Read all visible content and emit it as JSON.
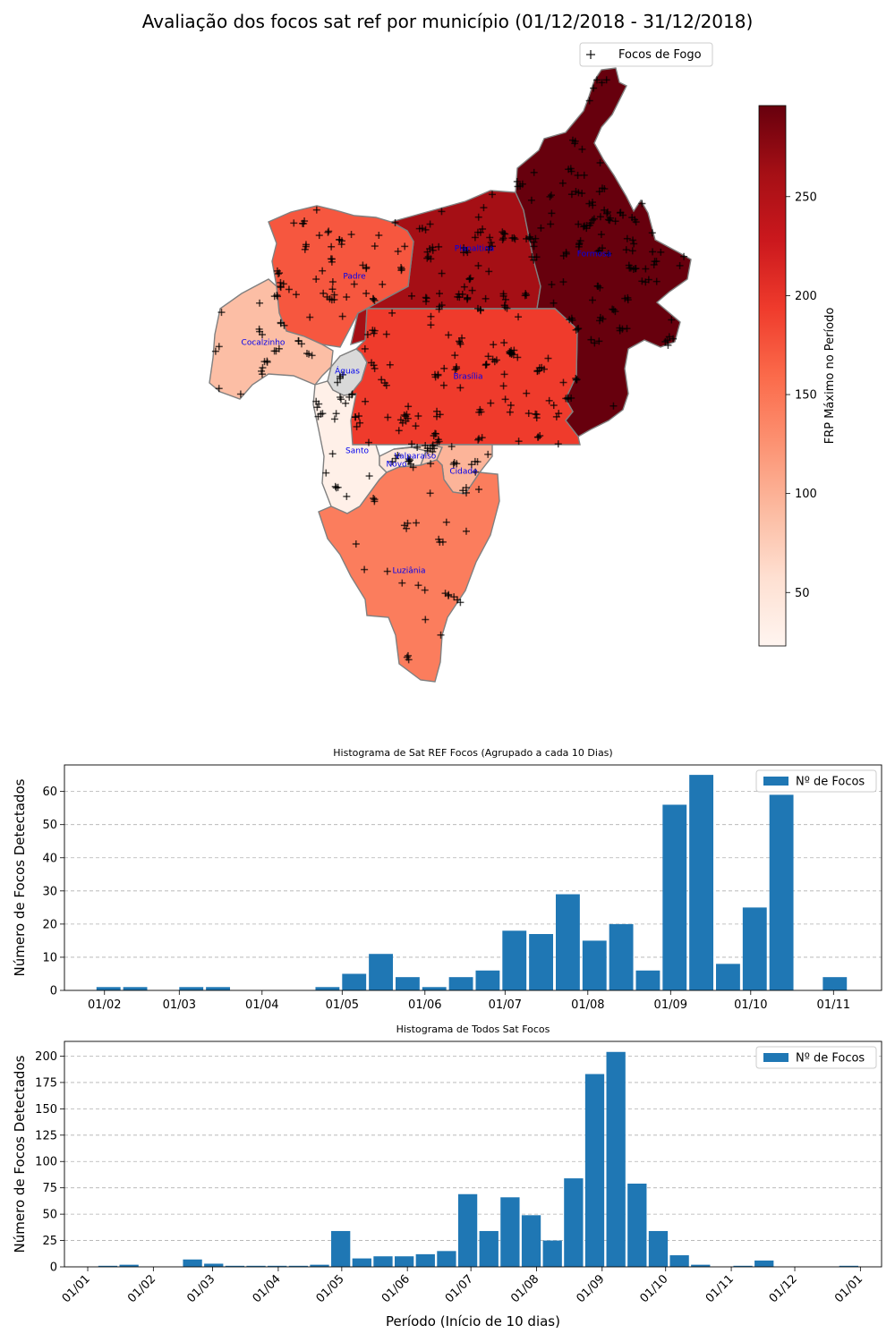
{
  "title": "Avaliação dos focos sat ref por município (01/12/2018 - 31/12/2018)",
  "map": {
    "legend_label": "Focos de Fogo",
    "colorbar_label": "FRP Máximo no Período",
    "colorbar_ticks": [
      "50",
      "100",
      "150",
      "200",
      "250"
    ],
    "colorbar_range": [
      23,
      296
    ],
    "colormap": "Reds",
    "municipalities": [
      {
        "name": "Planaltina",
        "frp": 258,
        "color": "#a50f15"
      },
      {
        "name": "Formosa",
        "frp": 292,
        "color": "#67000d"
      },
      {
        "name": "Padre",
        "frp": 168,
        "color": "#f6573f"
      },
      {
        "name": "Cocalzinho",
        "frp": 80,
        "color": "#fcbea5"
      },
      {
        "name": "Águas",
        "frp": null,
        "color": "#d9d9d9"
      },
      {
        "name": "Brasília",
        "frp": 192,
        "color": "#ef3b2c"
      },
      {
        "name": "Santo",
        "frp": 33,
        "color": "#fff0e8"
      },
      {
        "name": "Novo",
        "frp": 40,
        "color": "#fee5d9"
      },
      {
        "name": "Valparaíso",
        "frp": 60,
        "color": "#fdd0bb"
      },
      {
        "name": "Cidade",
        "frp": 85,
        "color": "#fcb499"
      },
      {
        "name": "Luziânia",
        "frp": 140,
        "color": "#fb7d5d"
      }
    ]
  },
  "chart_data": [
    {
      "type": "bar",
      "title": "Histograma de Sat REF Focos (Agrupado a cada 10 Dias)",
      "xlabel": "",
      "ylabel": "Número de Focos Detectados",
      "legend": "Nº de Focos",
      "legend_position": "top-right",
      "grid": "y-dashed",
      "color": "#1f77b4",
      "ylim": [
        0,
        68
      ],
      "yticks": [
        0,
        10,
        20,
        30,
        40,
        50,
        60
      ],
      "xticks": [
        "01/02",
        "01/03",
        "01/04",
        "01/05",
        "01/06",
        "01/07",
        "01/08",
        "01/09",
        "01/10",
        "01/11"
      ],
      "bar_width_days": 9,
      "x": [
        "2018-01-29",
        "2018-02-08",
        "2018-03-01",
        "2018-03-11",
        "2018-04-21",
        "2018-05-01",
        "2018-05-11",
        "2018-05-21",
        "2018-05-31",
        "2018-06-10",
        "2018-06-20",
        "2018-06-30",
        "2018-07-10",
        "2018-07-20",
        "2018-07-30",
        "2018-08-09",
        "2018-08-19",
        "2018-08-29",
        "2018-09-08",
        "2018-09-18",
        "2018-09-28",
        "2018-10-08",
        "2018-10-28"
      ],
      "values": [
        1,
        1,
        1,
        1,
        1,
        5,
        11,
        4,
        1,
        4,
        6,
        18,
        17,
        29,
        15,
        20,
        6,
        56,
        65,
        8,
        25,
        59,
        4
      ]
    },
    {
      "type": "bar",
      "title": "Histograma de Todos Sat Focos",
      "xlabel": "Período (Início de 10 dias)",
      "ylabel": "Número de Focos Detectados",
      "legend": "Nº de Focos",
      "legend_position": "top-right",
      "grid": "y-dashed",
      "color": "#1f77b4",
      "ylim": [
        0,
        214
      ],
      "yticks": [
        0,
        25,
        50,
        75,
        100,
        125,
        150,
        175,
        200
      ],
      "xticks": [
        "01/01",
        "01/02",
        "01/03",
        "01/04",
        "01/05",
        "01/06",
        "01/07",
        "01/08",
        "01/09",
        "01/10",
        "01/11",
        "01/12",
        "01/01"
      ],
      "bar_width_days": 9,
      "x": [
        "2018-01-06",
        "2018-01-16",
        "2018-02-15",
        "2018-02-25",
        "2018-03-07",
        "2018-03-17",
        "2018-03-27",
        "2018-04-06",
        "2018-04-16",
        "2018-04-26",
        "2018-05-06",
        "2018-05-16",
        "2018-05-26",
        "2018-06-05",
        "2018-06-15",
        "2018-06-25",
        "2018-07-05",
        "2018-07-15",
        "2018-07-25",
        "2018-08-04",
        "2018-08-14",
        "2018-08-24",
        "2018-09-03",
        "2018-09-13",
        "2018-09-23",
        "2018-10-03",
        "2018-10-13",
        "2018-11-02",
        "2018-11-12",
        "2018-12-22"
      ],
      "values": [
        1,
        2,
        7,
        3,
        1,
        1,
        1,
        1,
        2,
        34,
        8,
        10,
        10,
        12,
        15,
        69,
        34,
        66,
        49,
        25,
        84,
        183,
        204,
        79,
        34,
        11,
        2,
        1,
        6,
        1
      ]
    }
  ]
}
